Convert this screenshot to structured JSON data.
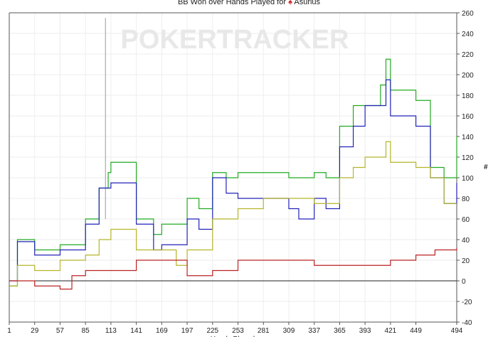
{
  "chart_data": {
    "type": "line",
    "title": "BB Won over Hands Played for",
    "player": "Asurius",
    "title_icon": "poker-spade-icon",
    "watermark": "POKERTRACKER",
    "xlabel": "Hands Played",
    "ylabel": "#",
    "xlim": [
      1,
      494
    ],
    "ylim": [
      -40,
      260
    ],
    "x_ticks": [
      1,
      29,
      57,
      85,
      113,
      141,
      169,
      197,
      225,
      253,
      281,
      309,
      337,
      365,
      393,
      421,
      449,
      494
    ],
    "y_ticks": [
      -40,
      -20,
      0,
      20,
      40,
      60,
      80,
      100,
      120,
      140,
      160,
      180,
      200,
      220,
      240,
      260
    ],
    "grid": true,
    "legend": "none",
    "series": [
      {
        "color": "#22aa22",
        "points": [
          [
            1,
            -5
          ],
          [
            10,
            40
          ],
          [
            29,
            30
          ],
          [
            57,
            35
          ],
          [
            85,
            60
          ],
          [
            100,
            90
          ],
          [
            110,
            105
          ],
          [
            113,
            115
          ],
          [
            141,
            60
          ],
          [
            160,
            45
          ],
          [
            169,
            55
          ],
          [
            197,
            80
          ],
          [
            210,
            70
          ],
          [
            225,
            105
          ],
          [
            240,
            100
          ],
          [
            253,
            105
          ],
          [
            281,
            105
          ],
          [
            309,
            100
          ],
          [
            337,
            105
          ],
          [
            350,
            100
          ],
          [
            365,
            150
          ],
          [
            380,
            170
          ],
          [
            393,
            170
          ],
          [
            410,
            190
          ],
          [
            416,
            215
          ],
          [
            421,
            185
          ],
          [
            449,
            175
          ],
          [
            465,
            110
          ],
          [
            480,
            100
          ],
          [
            494,
            140
          ]
        ]
      },
      {
        "color": "#2222bb",
        "points": [
          [
            1,
            0
          ],
          [
            10,
            38
          ],
          [
            29,
            25
          ],
          [
            57,
            30
          ],
          [
            85,
            55
          ],
          [
            100,
            90
          ],
          [
            113,
            95
          ],
          [
            141,
            55
          ],
          [
            160,
            30
          ],
          [
            169,
            35
          ],
          [
            197,
            60
          ],
          [
            210,
            50
          ],
          [
            225,
            100
          ],
          [
            240,
            85
          ],
          [
            253,
            80
          ],
          [
            281,
            80
          ],
          [
            309,
            70
          ],
          [
            320,
            60
          ],
          [
            337,
            80
          ],
          [
            350,
            70
          ],
          [
            365,
            130
          ],
          [
            380,
            150
          ],
          [
            393,
            170
          ],
          [
            416,
            195
          ],
          [
            421,
            160
          ],
          [
            449,
            150
          ],
          [
            465,
            100
          ],
          [
            480,
            75
          ],
          [
            494,
            95
          ]
        ]
      },
      {
        "color": "#b5b52a",
        "points": [
          [
            1,
            -5
          ],
          [
            10,
            15
          ],
          [
            29,
            10
          ],
          [
            57,
            20
          ],
          [
            85,
            25
          ],
          [
            100,
            40
          ],
          [
            113,
            50
          ],
          [
            141,
            30
          ],
          [
            169,
            30
          ],
          [
            185,
            15
          ],
          [
            197,
            30
          ],
          [
            225,
            60
          ],
          [
            253,
            70
          ],
          [
            281,
            80
          ],
          [
            309,
            80
          ],
          [
            337,
            75
          ],
          [
            365,
            100
          ],
          [
            380,
            110
          ],
          [
            393,
            120
          ],
          [
            416,
            135
          ],
          [
            421,
            115
          ],
          [
            449,
            110
          ],
          [
            465,
            100
          ],
          [
            480,
            75
          ],
          [
            494,
            75
          ]
        ]
      },
      {
        "color": "#bb2222",
        "points": [
          [
            1,
            0
          ],
          [
            29,
            -5
          ],
          [
            57,
            -8
          ],
          [
            70,
            5
          ],
          [
            85,
            10
          ],
          [
            113,
            10
          ],
          [
            141,
            20
          ],
          [
            169,
            20
          ],
          [
            197,
            5
          ],
          [
            225,
            10
          ],
          [
            253,
            20
          ],
          [
            281,
            20
          ],
          [
            309,
            20
          ],
          [
            337,
            15
          ],
          [
            365,
            15
          ],
          [
            393,
            15
          ],
          [
            421,
            20
          ],
          [
            449,
            25
          ],
          [
            470,
            30
          ],
          [
            494,
            32
          ]
        ]
      }
    ],
    "spike": {
      "x": 107,
      "y_from": 60,
      "y_to": 255,
      "color": "#999999"
    }
  }
}
